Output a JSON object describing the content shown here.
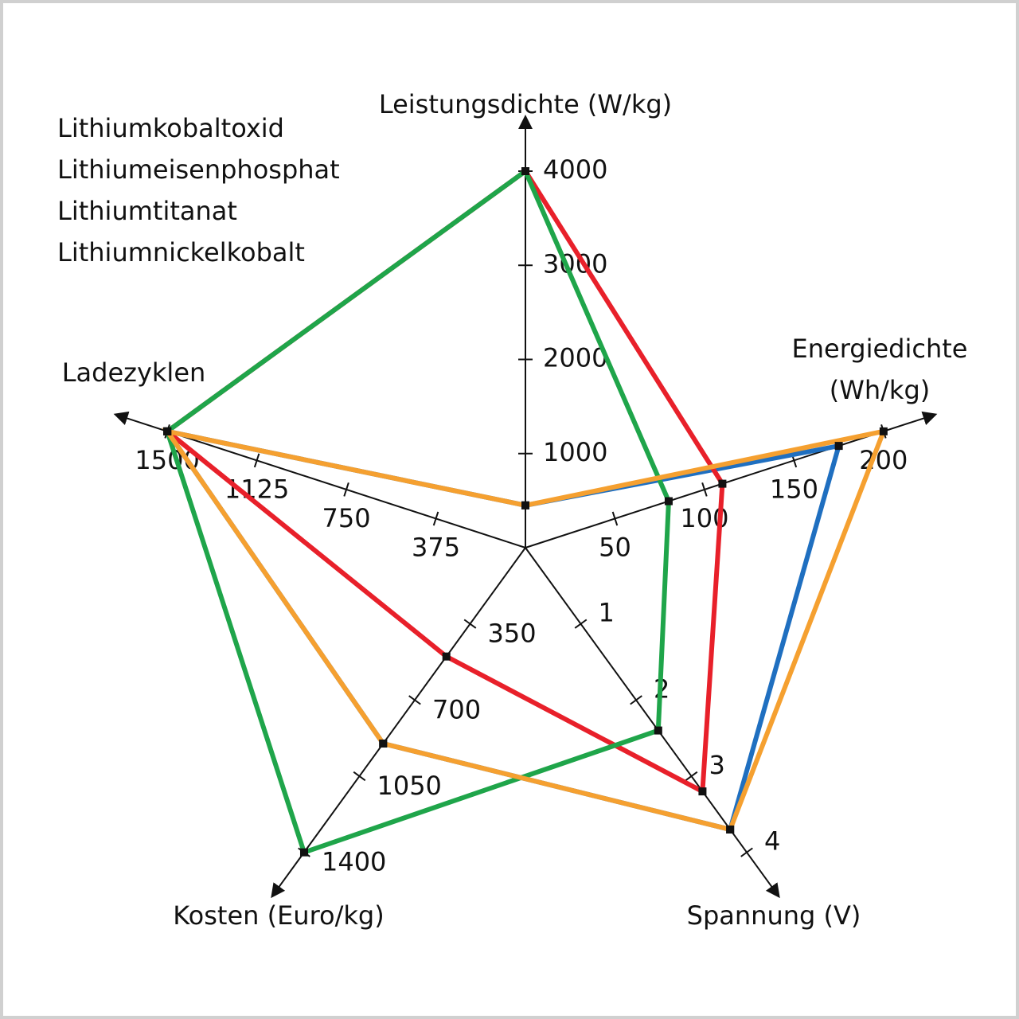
{
  "chart_data": {
    "type": "radar",
    "axes": [
      {
        "label": [
          "Leistungsdichte (W/kg)"
        ],
        "lim": [
          0,
          4000
        ],
        "ticks": [
          1000,
          2000,
          3000,
          4000
        ]
      },
      {
        "label": [
          "Energiedichte",
          "(Wh/kg)"
        ],
        "lim": [
          0,
          200
        ],
        "ticks": [
          50,
          100,
          150,
          200
        ]
      },
      {
        "label": [
          "Spannung (V)"
        ],
        "lim": [
          0,
          4
        ],
        "ticks": [
          1,
          2,
          3,
          4
        ]
      },
      {
        "label": [
          "Kosten (Euro/kg)"
        ],
        "lim": [
          0,
          1400
        ],
        "ticks": [
          350,
          700,
          1050,
          1400
        ]
      },
      {
        "label": [
          "Ladezyklen"
        ],
        "lim": [
          0,
          1500
        ],
        "ticks": [
          375,
          750,
          1125,
          1500
        ]
      }
    ],
    "series": [
      {
        "name": "Lithiumkobaltoxid",
        "color": "#1f6fc0",
        "values": [
          450,
          175,
          3.7,
          900,
          1500
        ]
      },
      {
        "name": "Lithiumeisenphosphat",
        "color": "#e8202a",
        "values": [
          4000,
          110,
          3.2,
          500,
          1500
        ]
      },
      {
        "name": "Lithiumtitanat",
        "color": "#1fa54a",
        "values": [
          4000,
          80,
          2.4,
          1400,
          1500
        ]
      },
      {
        "name": "Lithiumnickelkobalt",
        "color": "#f5a030",
        "values": [
          450,
          200,
          3.7,
          900,
          1500
        ]
      }
    ]
  }
}
